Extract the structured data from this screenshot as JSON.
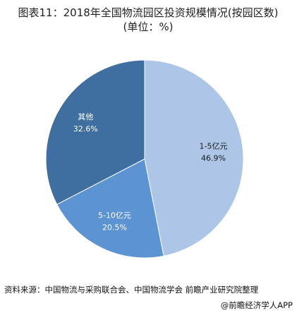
{
  "chart_data": {
    "type": "pie",
    "title": "图表11：2018年全国物流园区投资规模情况(按园区数)(单位：%)",
    "categories": [
      "1-5亿元",
      "5-10亿元",
      "其他"
    ],
    "values": [
      46.9,
      20.5,
      32.6
    ],
    "value_labels": [
      "46.9%",
      "20.5%",
      "32.6%"
    ],
    "colors": [
      "#adc5e6",
      "#5b93d3",
      "#3f6fa0"
    ],
    "source": "资料来源：中国物流与采购联合会、中国物流学会 前瞻产业研究院整理",
    "credit": "@前瞻经济学人APP"
  }
}
